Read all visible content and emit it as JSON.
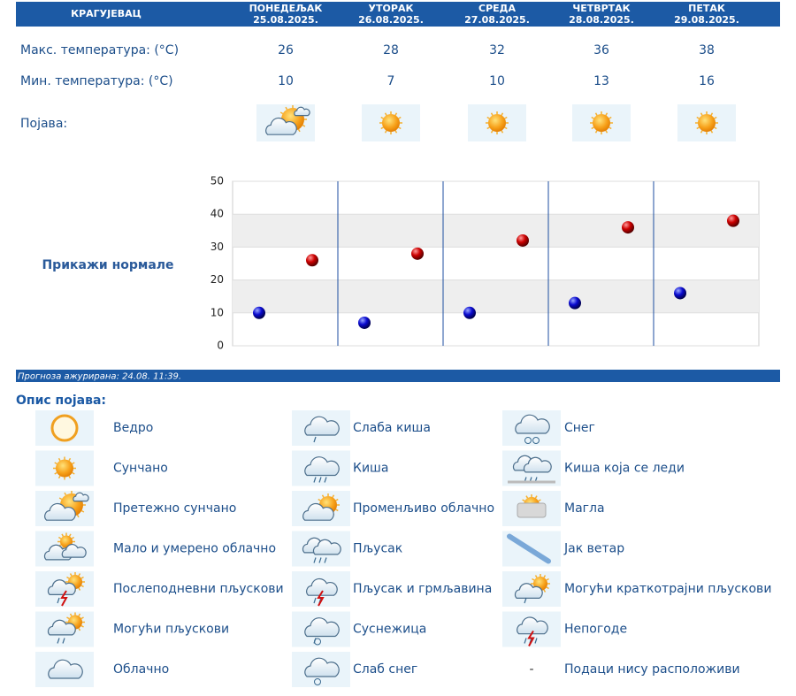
{
  "header": {
    "city": "КРАГУЈЕВАЦ",
    "days": [
      {
        "name": "ПОНЕДЕЉАК",
        "date": "25.08.2025."
      },
      {
        "name": "УТОРАК",
        "date": "26.08.2025."
      },
      {
        "name": "СРЕДА",
        "date": "27.08.2025."
      },
      {
        "name": "ЧЕТВРТАК",
        "date": "28.08.2025."
      },
      {
        "name": "ПЕТАК",
        "date": "29.08.2025."
      }
    ]
  },
  "rows": {
    "max": {
      "label": "Макс. температура: (°C)",
      "values": [
        26,
        28,
        32,
        36,
        38
      ]
    },
    "min": {
      "label": "Мин. температура: (°C)",
      "values": [
        10,
        7,
        10,
        13,
        16
      ]
    },
    "phenomenon": {
      "label": "Појава:"
    }
  },
  "chart": {
    "ylim": [
      0,
      50
    ],
    "yticks": [
      0,
      10,
      20,
      30,
      40,
      50
    ],
    "max_color": "#cc0000",
    "min_color": "#0a0ad0",
    "normals_link": "Прикажи нормале"
  },
  "updated": "Прогноза ажурирана:  24.08. 11:39.",
  "legend": {
    "title": "Опис појава:",
    "columns": [
      [
        {
          "label": "Ведро"
        },
        {
          "label": "Сунчано"
        },
        {
          "label": "Претежно сунчано"
        },
        {
          "label": "Мало и умерено облачно"
        },
        {
          "label": "Послеподневни пљускови"
        },
        {
          "label": "Могући пљускови"
        },
        {
          "label": "Облачно"
        }
      ],
      [
        {
          "label": "Слаба киша"
        },
        {
          "label": "Киша"
        },
        {
          "label": "Променљиво облачно"
        },
        {
          "label": "Пљусак"
        },
        {
          "label": "Пљусак и грмљавина"
        },
        {
          "label": "Суснежица"
        },
        {
          "label": "Слаб снег"
        }
      ],
      [
        {
          "label": "Снег"
        },
        {
          "label": "Киша која се леди"
        },
        {
          "label": "Магла"
        },
        {
          "label": "Јак ветар"
        },
        {
          "label": "Могући краткотрајни пљускови"
        },
        {
          "label": "Непогоде"
        },
        {
          "symbol": "-",
          "label": "Подаци нису расположиви"
        }
      ]
    ]
  }
}
